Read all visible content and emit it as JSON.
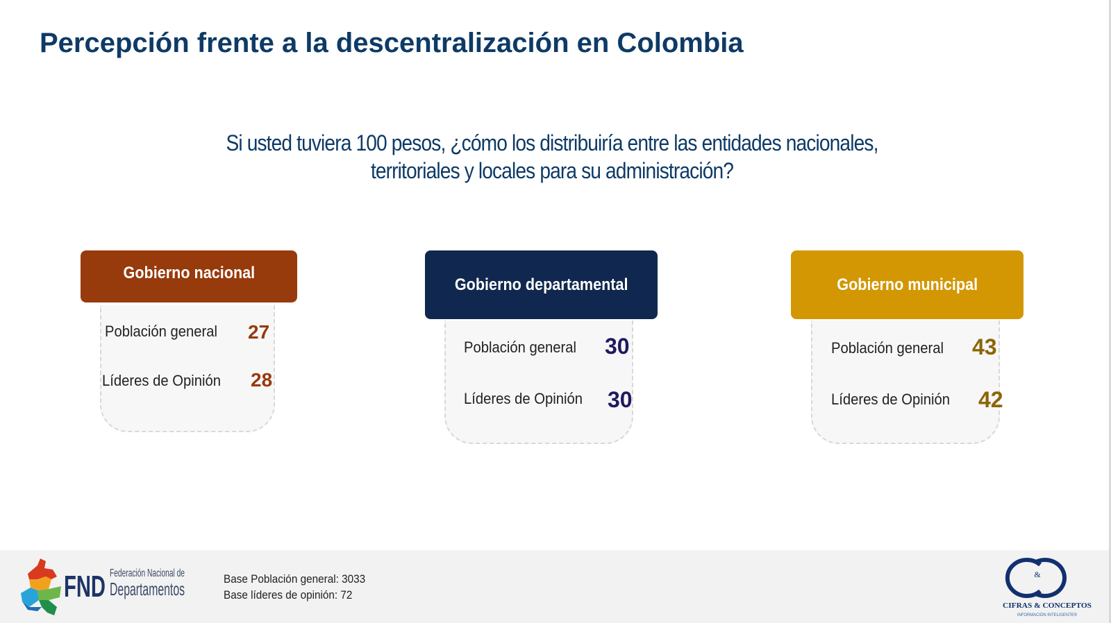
{
  "page": {
    "title": "Percepción frente a la descentralización en Colombia"
  },
  "question": {
    "line1": "Si usted tuviera 100 pesos, ¿cómo los distribuiría entre las entidades nacionales,",
    "line2": "territoriales y locales para su administración?"
  },
  "cards": [
    {
      "title": "Gobierno nacional",
      "color": "#973a0c",
      "value_color": "#973a0c",
      "rows": [
        {
          "label": "Población general",
          "value": "27"
        },
        {
          "label": "Líderes de Opinión",
          "value": "28"
        }
      ]
    },
    {
      "title": "Gobierno departamental",
      "color": "#10284f",
      "value_color": "#1f1a5e",
      "rows": [
        {
          "label": "Población general",
          "value": "30"
        },
        {
          "label": "Líderes de Opinión",
          "value": "30"
        }
      ]
    },
    {
      "title": "Gobierno municipal",
      "color": "#d29702",
      "value_color": "#8c6508",
      "rows": [
        {
          "label": "Población general",
          "value": "43"
        },
        {
          "label": "Líderes de Opinión",
          "value": "42"
        }
      ]
    }
  ],
  "footer": {
    "fnd_abbr": "FND",
    "fnd_line1": "Federación Nacional de",
    "fnd_line2": "Departamentos",
    "base_general": "Base Población general: 3033",
    "base_lideres": "Base líderes de opinión:  72",
    "cc_symbol": "&",
    "cc_name": "CIFRAS & CONCEPTOS",
    "cc_tagline": "INFORMACIÓN INTELIGENTE®"
  }
}
